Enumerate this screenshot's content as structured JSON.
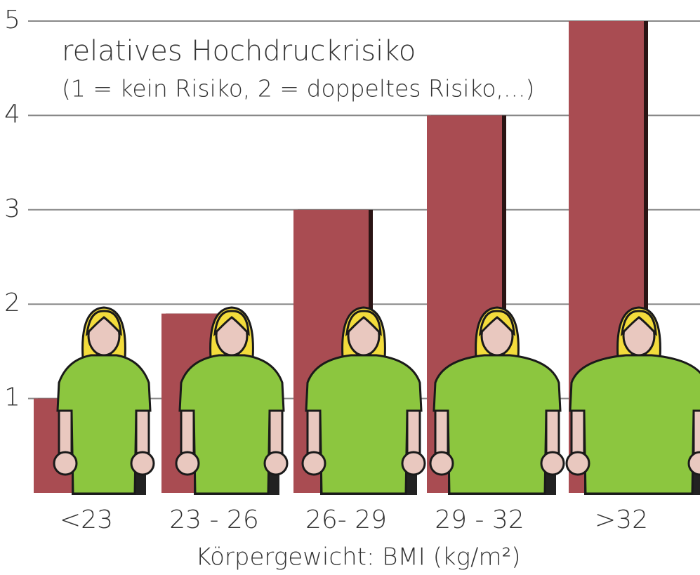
{
  "chart_data": {
    "type": "bar",
    "title": "relatives Hochdruckrisiko",
    "subtitle": "(1 = kein Risiko, 2 = doppeltes Risiko,...)",
    "x_label": "Körpergewicht: BMI (kg/m²)",
    "categories": [
      "<23",
      "23 - 26",
      "26- 29",
      "29 - 32",
      ">32"
    ],
    "values": [
      1,
      1.9,
      3,
      4,
      5
    ],
    "color": "#a94c52",
    "ylim": [
      0,
      5
    ],
    "yticks": [
      1,
      2,
      3,
      4,
      5
    ],
    "grid": true
  }
}
